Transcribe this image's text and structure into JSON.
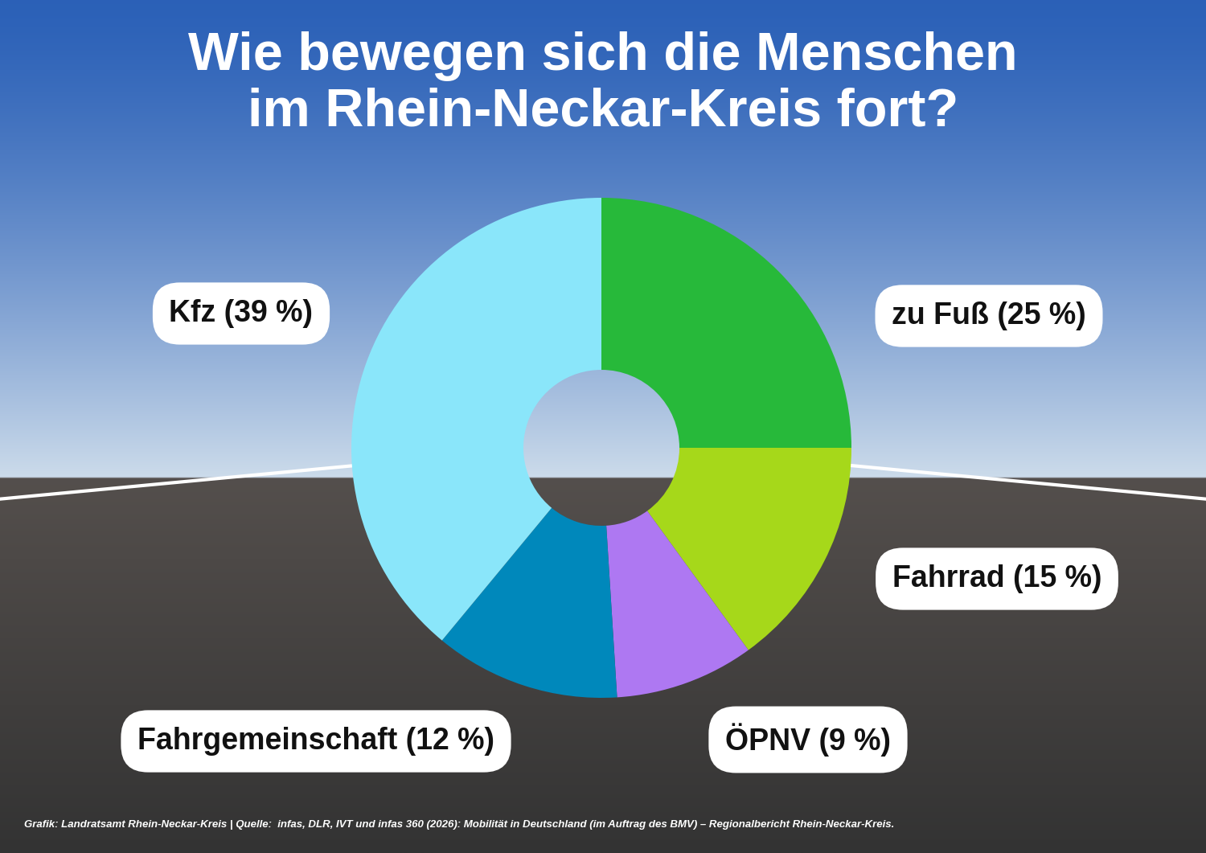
{
  "chart_data": {
    "type": "pie",
    "title": "Wie bewegen sich die Menschen\nim Rhein-Neckar-Kreis fort?",
    "categories": [
      "zu Fuß (25 %)",
      "Fahrrad (15 %)",
      "ÖPNV (9 %)",
      "Fahrgemeinschaft (12 %)",
      "Kfz (39 %)"
    ],
    "values": [
      25,
      15,
      9,
      12,
      39
    ],
    "colors": [
      "#27b93a",
      "#a6d81a",
      "#ae78f2",
      "#0088bb",
      "#8ae6fa"
    ],
    "source": "Grafik: Landratsamt Rhein-Neckar-Kreis | Quelle:  infas, DLR, IVT und infas 360 (2026): Mobilität in Deutschland (im Auftrag des BMV) – Regionalbericht Rhein-Neckar-Kreis."
  }
}
